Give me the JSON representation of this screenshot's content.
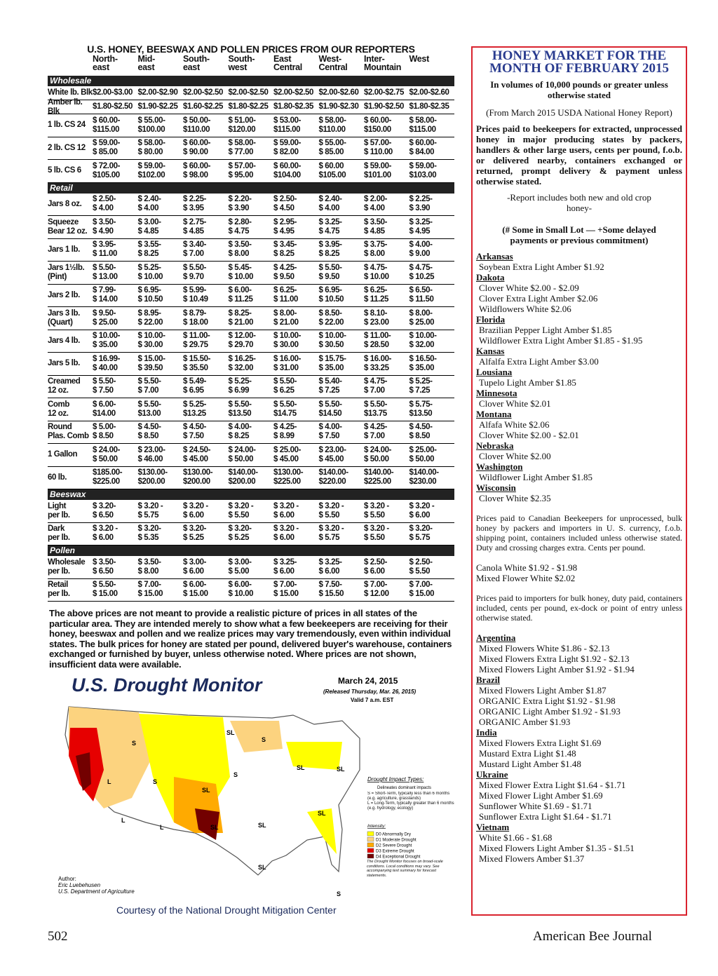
{
  "table": {
    "title": "U.S. HONEY, BEESWAX AND POLLEN PRICES FROM OUR REPORTERS",
    "columns": [
      "North-\neast",
      "Mid-\neast",
      "South-\neast",
      "South-\nwest",
      "East\nCentral",
      "West-\nCentral",
      "Inter-\nMountain",
      "West"
    ],
    "sections": [
      {
        "name": "Wholesale",
        "rows": [
          {
            "label": "White lb. Blk",
            "cells": [
              "$2.00-$3.00",
              "$2.00-$2.90",
              "$2.00-$2.50",
              "$2.00-$2.50",
              "$2.00-$2.50",
              "$2.00-$2.60",
              "$2.00-$2.75",
              "$2.00-$2.60"
            ]
          },
          {
            "label": "Amber lb. Blk",
            "cells": [
              "$1.80-$2.50",
              "$1.90-$2.25",
              "$1.60-$2.25",
              "$1.80-$2.25",
              "$1.80-$2.35",
              "$1.90-$2.30",
              "$1.90-$2.50",
              "$1.80-$2.35"
            ]
          },
          {
            "label": "1 lb. CS 24",
            "cells": [
              "$ 60.00-\n$115.00",
              "$ 55.00-\n$100.00",
              "$ 50.00-\n$110.00",
              "$ 51.00-\n$120.00",
              "$ 53.00-\n$115.00",
              "$ 58.00-\n$110.00",
              "$ 60.00-\n$150.00",
              "$ 58.00-\n$115.00"
            ]
          },
          {
            "label": "2 lb. CS 12",
            "cells": [
              "$ 59.00-\n$ 85.00",
              "$ 58.00-\n$ 80.00",
              "$ 60.00-\n$ 90.00",
              "$ 58.00-\n$ 77.00",
              "$ 59.00-\n$ 82.00",
              "$ 55.00-\n$ 85.00",
              "$ 57.00-\n$ 110.00",
              "$ 60.00-\n$ 84.00"
            ]
          },
          {
            "label": "5 lb. CS 6",
            "cells": [
              "$ 72.00-\n$105.00",
              "$ 59.00-\n$102.00",
              "$ 60.00-\n$ 98.00",
              "$ 57.00-\n$ 95.00",
              "$ 60.00-\n$104.00",
              "$ 60.00\n$105.00",
              "$ 59.00-\n$101.00",
              "$ 59.00-\n$103.00"
            ]
          }
        ]
      },
      {
        "name": "Retail",
        "rows": [
          {
            "label": "Jars 8 oz.",
            "cells": [
              "$ 2.50-\n$ 4.00",
              "$ 2.40-\n$ 4.00",
              "$ 2.25-\n$ 3.95",
              "$ 2.20-\n$ 3.90",
              "$ 2.50-\n$ 4.50",
              "$ 2.40-\n$ 4.00",
              "$ 2.00-\n$ 4.00",
              "$ 2.25-\n$ 3.90"
            ]
          },
          {
            "label": "Squeeze\nBear 12 oz.",
            "cells": [
              "$ 3.50-\n$ 4.90",
              "$ 3.00-\n$ 4.85",
              "$ 2.75-\n$ 4.85",
              "$ 2.80-\n$ 4.75",
              "$ 2.95-\n$ 4.95",
              "$ 3.25-\n$ 4.75",
              "$ 3.50-\n$ 4.85",
              "$ 3.25-\n$ 4.95"
            ]
          },
          {
            "label": "Jars 1 lb.",
            "cells": [
              "$ 3.95-\n$ 11.00",
              "$ 3.55-\n$ 8.25",
              "$ 3.40-\n$ 7.00",
              "$ 3.50-\n$ 8.00",
              "$ 3.45-\n$ 8.25",
              "$ 3.95-\n$ 8.25",
              "$ 3.75-\n$ 8.00",
              "$ 4.00-\n$ 9.00"
            ]
          },
          {
            "label": "Jars 1½lb.\n(Pint)",
            "cells": [
              "$ 5.50-\n$ 13.00",
              "$ 5.25-\n$ 10.00",
              "$ 5.50-\n$ 9.70",
              "$ 5.45-\n$ 10.00",
              "$ 4.25-\n$ 9.50",
              "$ 5.50-\n$ 9.50",
              "$ 4.75-\n$ 10.00",
              "$ 4.75-\n$ 10.25"
            ]
          },
          {
            "label": "Jars 2 lb.",
            "cells": [
              "$ 7.99-\n$ 14.00",
              "$ 6.95-\n$ 10.50",
              "$ 5.99-\n$ 10.49",
              "$ 6.00-\n$ 11.25",
              "$ 6.25-\n$ 11.00",
              "$ 6.95-\n$ 10.50",
              "$ 6.25-\n$ 11.25",
              "$ 6.50-\n$ 11.50"
            ]
          },
          {
            "label": "Jars 3 lb.\n(Quart)",
            "cells": [
              "$ 9.50-\n$ 25.00",
              "$ 8.95-\n$ 22.00",
              "$ 8.79-\n$ 18.00",
              "$ 8.25-\n$ 21.00",
              "$ 8.00-\n$ 21.00",
              "$ 8.50-\n$ 22.00",
              "$ 8.10-\n$ 23.00",
              "$ 8.00-\n$ 25.00"
            ]
          },
          {
            "label": "Jars 4 lb.",
            "cells": [
              "$ 10.00-\n$ 35.00",
              "$ 10.00-\n$ 30.00",
              "$ 11.00-\n$ 29.75",
              "$ 12.00-\n$ 29.70",
              "$ 10.00-\n$ 30.00",
              "$ 10.00-\n$ 30.50",
              "$ 11.00-\n$ 28.50",
              "$ 10.00-\n$ 32.00"
            ]
          },
          {
            "label": "Jars 5 lb.",
            "cells": [
              "$ 16.99-\n$ 40.00",
              "$ 15.00-\n$ 39.50",
              "$ 15.50-\n$ 35.50",
              "$ 16.25-\n$ 32.00",
              "$ 16.00-\n$ 31.00",
              "$ 15.75-\n$ 35.00",
              "$ 16.00-\n$ 33.25",
              "$ 16.50-\n$ 35.00"
            ]
          },
          {
            "label": "Creamed\n12 oz.",
            "cells": [
              "$ 5.50-\n$ 7.50",
              "$ 5.50-\n$ 7.00",
              "$ 5.49-\n$ 6.95",
              "$ 5.25-\n$ 6.99",
              "$ 5.50-\n$ 6.25",
              "$ 5.40-\n$ 7.25",
              "$ 4.75-\n$ 7.00",
              "$ 5.25-\n$ 7.25"
            ]
          },
          {
            "label": "Comb\n12 oz.",
            "cells": [
              "$ 6.00-\n$14.00",
              "$ 5.50-\n$13.00",
              "$ 5.25-\n$13.25",
              "$ 5.50-\n$13.50",
              "$ 5.50-\n$14.75",
              "$ 5.50-\n$14.50",
              "$ 5.50-\n$13.75",
              "$ 5.75-\n$13.50"
            ]
          },
          {
            "label": "Round\nPlas. Comb",
            "cells": [
              "$ 5.00-\n$ 8.50",
              "$ 4.50-\n$ 8.50",
              "$ 4.50-\n$ 7.50",
              "$ 4.00-\n$ 8.25",
              "$ 4.25-\n$ 8.99",
              "$ 4.00-\n$ 7.50",
              "$ 4.25-\n$ 7.00",
              "$ 4.50-\n$ 8.50"
            ]
          },
          {
            "label": "1 Gallon",
            "cells": [
              "$ 24.00-\n$ 50.00",
              "$ 23.00-\n$ 46.00",
              "$ 24.50-\n$ 45.00",
              "$ 24.00-\n$ 50.00",
              "$ 25.00-\n$ 45.00",
              "$ 23.00-\n$ 45.00",
              "$ 24.00-\n$ 50.00",
              "$ 25.00-\n$ 50.00"
            ]
          },
          {
            "label": "60 lb.",
            "cells": [
              "$185.00-\n$225.00",
              "$130.00-\n$200.00",
              "$130.00-\n$200.00",
              "$140.00-\n$200.00",
              "$130.00-\n$225.00",
              "$140.00-\n$220.00",
              "$140.00-\n$225.00",
              "$140.00-\n$230.00"
            ]
          }
        ]
      },
      {
        "name": "Beeswax",
        "rows": [
          {
            "label": "Light\nper lb.",
            "cells": [
              "$ 3.20-\n$ 6.50",
              "$ 3.20 -\n$ 5.75",
              "$ 3.20 -\n$ 6.00",
              "$ 3.20 -\n$ 5.50",
              "$ 3.20 -\n$ 6.00",
              "$ 3.20 -\n$ 5.50",
              "$ 3.20 -\n$ 5.50",
              "$ 3.20 -\n$ 6.00"
            ]
          },
          {
            "label": "Dark\nper lb.",
            "cells": [
              "$ 3.20 -\n$ 6.00",
              "$ 3.20-\n$ 5.35",
              "$ 3.20-\n$ 5.25",
              "$ 3.20-\n$ 5.25",
              "$ 3.20 -\n$ 6.00",
              "$ 3.20 -\n$ 5.75",
              "$ 3.20 -\n$ 5.50",
              "$ 3.20-\n$ 5.75"
            ]
          }
        ]
      },
      {
        "name": "Pollen",
        "rows": [
          {
            "label": "Wholesale\nper lb.",
            "cells": [
              "$ 3.50-\n$ 6.50",
              "$ 3.50-\n$ 8.00",
              "$ 3.00-\n$ 6.00",
              "$ 3.00-\n$ 5.00",
              "$ 3.25-\n$ 6.00",
              "$ 3.25-\n$ 6.00",
              "$ 2.50-\n$ 6.00",
              "$ 2.50-\n$ 5.50"
            ]
          },
          {
            "label": "Retail\nper lb.",
            "cells": [
              "$ 5.50-\n$ 15.00",
              "$ 7.00-\n$ 15.00",
              "$ 6.00-\n$ 15.00",
              "$ 6.00-\n$ 10.00",
              "$ 7.00-\n$ 15.00",
              "$ 7.50-\n$ 15.50",
              "$ 7.00-\n$ 12.00",
              "$ 7.00-\n$ 15.00"
            ]
          }
        ]
      }
    ],
    "note": "The above prices are not meant to provide a realistic picture of prices in all states of the particular area. They are intended merely to show what a few beekeepers are receiving for their honey, beeswax and pollen and we realize prices may vary tremendously, even within individual states. The bulk prices for honey are stated per pound, delivered buyer's warehouse, containers exchanged or furnished by buyer, unless otherwise noted. Where prices are not shown, insufficient data were available."
  },
  "map": {
    "title": "U.S. Drought Monitor",
    "date": "March 24, 2015",
    "released": "(Released Thursday, Mar. 26, 2015)",
    "valid": "Valid 7 a.m. EST",
    "labels": [
      "SL",
      "S",
      "L",
      "S",
      "SL",
      "S",
      "SL",
      "SL",
      "SL",
      "L",
      "L",
      "SL",
      "SL",
      "S",
      "SL",
      "S"
    ],
    "legend_title": "Drought Impact Types:",
    "legend_line": "Delineates dominant impacts",
    "legend_s": "S = Short-Term, typically less than 6 months (e.g. agriculture, grasslands)",
    "legend_l": "L = Long-Term, typically greater than 6 months (e.g. hydrology, ecology)",
    "intensity": "Intensity:",
    "levels": [
      {
        "name": "D0 Abnormally Dry",
        "color": "#ffff00"
      },
      {
        "name": "D1 Moderate Drought",
        "color": "#fcd37f"
      },
      {
        "name": "D2 Severe Drought",
        "color": "#ffaa00"
      },
      {
        "name": "D3 Extreme Drought",
        "color": "#e60000"
      },
      {
        "name": "D4 Exceptional Drought",
        "color": "#730000"
      }
    ],
    "disclaimer": "The Drought Monitor focuses on broad-scale conditions. Local conditions may vary. See accompanying text summary for forecast statements.",
    "author_label": "Author:",
    "author": "Eric Luebehusen",
    "agency": "U.S. Department of Agriculture",
    "courtesy": "Courtesy of the National Drought Mitigation Center"
  },
  "market": {
    "title": "HONEY MARKET FOR THE MONTH OF FEBRUARY 2015",
    "subtitle": "In volumes of 10,000 pounds or greater unless otherwise stated",
    "source": "(From March 2015 USDA National Honey Report)",
    "intro": "Prices paid to beekeepers for extracted, unprocessed honey in major producing states by packers, handlers & other large users, cents per pound, f.o.b. or delivered nearby, containers exchanged or returned, prompt delivery & payment unless otherwise stated.",
    "report_note": "-Report includes both new and old crop honey-",
    "lot_note": "(# Some in Small Lot — +Some delayed payments or previous commitment)",
    "states": [
      {
        "name": "Arkansas",
        "items": [
          "Soybean Extra Light Amber $1.92"
        ]
      },
      {
        "name": "Dakota",
        "items": [
          "Clover White $2.00 - $2.09",
          "Clover Extra Light Amber $2.06",
          "Wildflowers White $2.06"
        ]
      },
      {
        "name": "Florida",
        "items": [
          "Brazilian Pepper Light Amber $1.85",
          "Wildflower Extra Light Amber $1.85 - $1.95"
        ]
      },
      {
        "name": "Kansas",
        "items": [
          "Alfalfa Extra Light Amber $3.00"
        ]
      },
      {
        "name": "Lousiana",
        "items": [
          "Tupelo Light Amber $1.85"
        ]
      },
      {
        "name": "Minnesota",
        "items": [
          "Clover White $2.01"
        ]
      },
      {
        "name": "Montana",
        "items": [
          "Alfafa White $2.06",
          "Clover White $2.00 - $2.01"
        ]
      },
      {
        "name": "Nebraska",
        "items": [
          "Clover White $2.00"
        ]
      },
      {
        "name": "Washington",
        "items": [
          "Wildflower Light Amber $1.85"
        ]
      },
      {
        "name": "Wisconsin",
        "items": [
          "Clover White $2.35"
        ]
      }
    ],
    "canada_intro": "Prices paid to Canadian Beekeepers for unprocessed, bulk honey by packers and importers in U. S. currency, f.o.b. shipping point, containers included unless otherwise stated. Duty and crossing charges extra. Cents per pound.",
    "canada": [
      "Canola White $1.92 - $1.98",
      "Mixed Flower White $2.02"
    ],
    "import_intro": "Prices paid to importers for bulk honey, duty paid, containers included, cents per pound, ex-dock or point of entry unless otherwise stated.",
    "countries": [
      {
        "name": "Argentina",
        "items": [
          "Mixed Flowers White $1.86 - $2.13",
          "Mixed Flowers Extra Light $1.92 - $2.13",
          "Mixed Flowers Light Amber $1.92 - $1.94"
        ]
      },
      {
        "name": "Brazil",
        "items": [
          "Mixed Flowers Light Amber $1.87",
          "ORGANIC Extra Light $1.92 - $1.98",
          "ORGANIC Light Amber $1.92 - $1.93",
          "ORGANIC Amber $1.93"
        ]
      },
      {
        "name": "India",
        "items": [
          "Mixed Flowers Extra Light $1.69",
          "Mustard Extra Light $1.48",
          "Mustard Light Amber $1.48"
        ]
      },
      {
        "name": "Ukraine",
        "items": [
          "Mixed Flower Extra Light $1.64 - $1.71",
          "Mixed Flower Light Amber    $1.69",
          "Sunflower White $1.69 - $1.71",
          "Sunflower Extra Light $1.64 - $1.71"
        ]
      },
      {
        "name": "Vietnam",
        "items": [
          "White $1.66 - $1.68",
          "Mixed Flowers Light Amber $1.35 - $1.51",
          "Mixed Flowers Amber $1.37"
        ]
      }
    ]
  },
  "footer": {
    "page": "502",
    "journal": "American Bee Journal"
  }
}
